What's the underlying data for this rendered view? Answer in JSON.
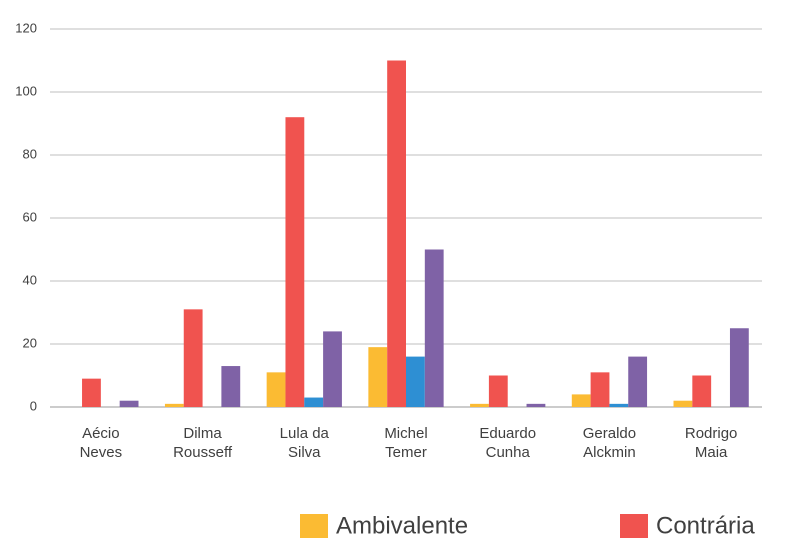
{
  "chart_data": {
    "type": "bar",
    "categories": [
      [
        "Aécio",
        "Neves"
      ],
      [
        "Dilma",
        "Rousseff"
      ],
      [
        "Lula da",
        "Silva"
      ],
      [
        "Michel",
        "Temer"
      ],
      [
        "Eduardo",
        "Cunha"
      ],
      [
        "Geraldo",
        "Alckmin"
      ],
      [
        "Rodrigo",
        "Maia"
      ]
    ],
    "series": [
      {
        "name": "Ambivalente",
        "color": "#fbbb33",
        "values": [
          0,
          1,
          11,
          19,
          1,
          4,
          2
        ]
      },
      {
        "name": "Contrária",
        "color": "#f0534f",
        "values": [
          9,
          31,
          92,
          110,
          10,
          11,
          10
        ]
      },
      {
        "color": "#2e8fd3",
        "values": [
          0,
          0,
          3,
          16,
          0,
          1,
          0
        ]
      },
      {
        "color": "#7f62a6",
        "values": [
          2,
          13,
          24,
          50,
          1,
          16,
          25
        ]
      }
    ],
    "ylim": [
      0,
      120
    ],
    "yticks": [
      0,
      20,
      40,
      60,
      80,
      100,
      120
    ],
    "grid": true,
    "legend": "bottom"
  }
}
